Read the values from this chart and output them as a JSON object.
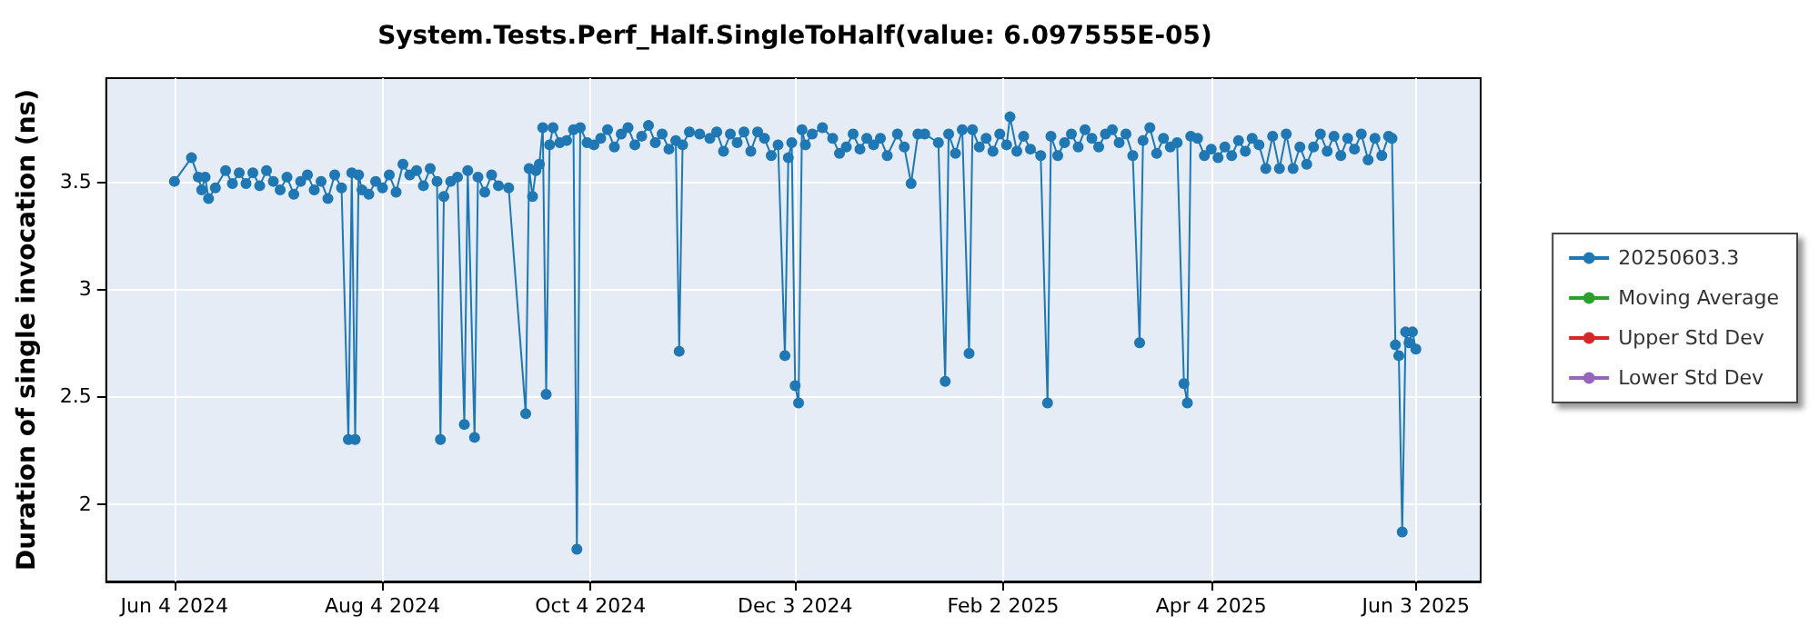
{
  "chart_data": {
    "type": "line",
    "title": "System.Tests.Perf_Half.SingleToHalf(value: 6.097555E-05)",
    "ylabel": "Duration of single invocation (ns)",
    "x": [
      "2024-06-04",
      "2024-06-09",
      "2024-06-11",
      "2024-06-12",
      "2024-06-13",
      "2024-06-14",
      "2024-06-16",
      "2024-06-19",
      "2024-06-21",
      "2024-06-23",
      "2024-06-25",
      "2024-06-27",
      "2024-06-29",
      "2024-07-01",
      "2024-07-03",
      "2024-07-05",
      "2024-07-07",
      "2024-07-09",
      "2024-07-11",
      "2024-07-13",
      "2024-07-15",
      "2024-07-17",
      "2024-07-19",
      "2024-07-21",
      "2024-07-23",
      "2024-07-25",
      "2024-07-26",
      "2024-07-27",
      "2024-07-28",
      "2024-07-29",
      "2024-07-31",
      "2024-08-02",
      "2024-08-04",
      "2024-08-06",
      "2024-08-08",
      "2024-08-10",
      "2024-08-12",
      "2024-08-14",
      "2024-08-16",
      "2024-08-18",
      "2024-08-20",
      "2024-08-21",
      "2024-08-22",
      "2024-08-24",
      "2024-08-26",
      "2024-08-28",
      "2024-08-29",
      "2024-08-31",
      "2024-09-01",
      "2024-09-03",
      "2024-09-05",
      "2024-09-07",
      "2024-09-10",
      "2024-09-15",
      "2024-09-16",
      "2024-09-17",
      "2024-09-18",
      "2024-09-19",
      "2024-09-20",
      "2024-09-21",
      "2024-09-22",
      "2024-09-23",
      "2024-09-25",
      "2024-09-27",
      "2024-09-29",
      "2024-09-30",
      "2024-10-01",
      "2024-10-03",
      "2024-10-05",
      "2024-10-07",
      "2024-10-09",
      "2024-10-11",
      "2024-10-13",
      "2024-10-15",
      "2024-10-17",
      "2024-10-19",
      "2024-10-21",
      "2024-10-23",
      "2024-10-25",
      "2024-10-27",
      "2024-10-29",
      "2024-10-30",
      "2024-10-31",
      "2024-11-02",
      "2024-11-05",
      "2024-11-08",
      "2024-11-10",
      "2024-11-12",
      "2024-11-14",
      "2024-11-16",
      "2024-11-18",
      "2024-11-20",
      "2024-11-22",
      "2024-11-24",
      "2024-11-26",
      "2024-11-28",
      "2024-11-30",
      "2024-12-01",
      "2024-12-02",
      "2024-12-03",
      "2024-12-04",
      "2024-12-05",
      "2024-12-06",
      "2024-12-08",
      "2024-12-11",
      "2024-12-14",
      "2024-12-16",
      "2024-12-18",
      "2024-12-20",
      "2024-12-22",
      "2024-12-24",
      "2024-12-26",
      "2024-12-28",
      "2024-12-30",
      "2025-01-02",
      "2025-01-04",
      "2025-01-06",
      "2025-01-08",
      "2025-01-10",
      "2025-01-14",
      "2025-01-16",
      "2025-01-17",
      "2025-01-19",
      "2025-01-21",
      "2025-01-23",
      "2025-01-24",
      "2025-01-26",
      "2025-01-28",
      "2025-01-30",
      "2025-02-01",
      "2025-02-03",
      "2025-02-04",
      "2025-02-06",
      "2025-02-08",
      "2025-02-10",
      "2025-02-13",
      "2025-02-15",
      "2025-02-16",
      "2025-02-18",
      "2025-02-20",
      "2025-02-22",
      "2025-02-24",
      "2025-02-26",
      "2025-02-28",
      "2025-03-02",
      "2025-03-04",
      "2025-03-06",
      "2025-03-08",
      "2025-03-10",
      "2025-03-12",
      "2025-03-14",
      "2025-03-15",
      "2025-03-17",
      "2025-03-19",
      "2025-03-21",
      "2025-03-23",
      "2025-03-25",
      "2025-03-27",
      "2025-03-28",
      "2025-03-29",
      "2025-03-31",
      "2025-04-02",
      "2025-04-04",
      "2025-04-06",
      "2025-04-08",
      "2025-04-10",
      "2025-04-12",
      "2025-04-14",
      "2025-04-16",
      "2025-04-18",
      "2025-04-20",
      "2025-04-22",
      "2025-04-24",
      "2025-04-26",
      "2025-04-28",
      "2025-04-30",
      "2025-05-02",
      "2025-05-04",
      "2025-05-06",
      "2025-05-08",
      "2025-05-10",
      "2025-05-12",
      "2025-05-14",
      "2025-05-16",
      "2025-05-18",
      "2025-05-20",
      "2025-05-22",
      "2025-05-24",
      "2025-05-26",
      "2025-05-27",
      "2025-05-28",
      "2025-05-29",
      "2025-05-30",
      "2025-05-31",
      "2025-06-01",
      "2025-06-02",
      "2025-06-03"
    ],
    "series": [
      {
        "name": "20250603.3",
        "color": "#1f77b4",
        "values": [
          3.5,
          3.61,
          3.52,
          3.46,
          3.52,
          3.42,
          3.47,
          3.55,
          3.49,
          3.54,
          3.49,
          3.54,
          3.48,
          3.55,
          3.5,
          3.46,
          3.52,
          3.44,
          3.5,
          3.53,
          3.46,
          3.5,
          3.42,
          3.53,
          3.47,
          2.3,
          3.54,
          2.3,
          3.53,
          3.46,
          3.44,
          3.5,
          3.47,
          3.53,
          3.45,
          3.58,
          3.53,
          3.55,
          3.48,
          3.56,
          3.5,
          2.3,
          3.43,
          3.5,
          3.52,
          2.37,
          3.55,
          2.31,
          3.52,
          3.45,
          3.53,
          3.48,
          3.47,
          2.42,
          3.56,
          3.43,
          3.55,
          3.58,
          3.75,
          2.51,
          3.67,
          3.75,
          3.68,
          3.69,
          3.74,
          1.79,
          3.75,
          3.68,
          3.67,
          3.7,
          3.74,
          3.66,
          3.72,
          3.75,
          3.67,
          3.71,
          3.76,
          3.68,
          3.72,
          3.65,
          3.69,
          2.71,
          3.67,
          3.73,
          3.72,
          3.7,
          3.73,
          3.64,
          3.72,
          3.68,
          3.73,
          3.64,
          3.73,
          3.7,
          3.62,
          3.67,
          2.69,
          3.61,
          3.68,
          2.55,
          2.47,
          3.74,
          3.67,
          3.72,
          3.75,
          3.7,
          3.63,
          3.66,
          3.72,
          3.65,
          3.7,
          3.67,
          3.7,
          3.62,
          3.72,
          3.66,
          3.49,
          3.72,
          3.72,
          3.68,
          2.57,
          3.72,
          3.63,
          3.74,
          2.7,
          3.74,
          3.66,
          3.7,
          3.64,
          3.72,
          3.67,
          3.8,
          3.64,
          3.71,
          3.65,
          3.62,
          2.47,
          3.71,
          3.62,
          3.68,
          3.72,
          3.66,
          3.74,
          3.7,
          3.66,
          3.72,
          3.74,
          3.68,
          3.72,
          3.62,
          2.75,
          3.69,
          3.75,
          3.63,
          3.7,
          3.66,
          3.68,
          2.56,
          2.47,
          3.71,
          3.7,
          3.62,
          3.65,
          3.61,
          3.66,
          3.62,
          3.69,
          3.64,
          3.7,
          3.67,
          3.56,
          3.71,
          3.56,
          3.72,
          3.56,
          3.66,
          3.58,
          3.66,
          3.72,
          3.64,
          3.71,
          3.62,
          3.7,
          3.65,
          3.72,
          3.6,
          3.7,
          3.62,
          3.71,
          3.7,
          2.74,
          2.69,
          1.87,
          2.8,
          2.75,
          2.8,
          2.72
        ]
      },
      {
        "name": "Moving Average",
        "color": "#2ca02c",
        "values": [
          null,
          null,
          null,
          null,
          null,
          null,
          null,
          null,
          null,
          null,
          null,
          null,
          null,
          null,
          null,
          null,
          null,
          null,
          null,
          null,
          null,
          null,
          null,
          null,
          null,
          null,
          null,
          null,
          null,
          null,
          null,
          null,
          null,
          null,
          null,
          null,
          null,
          null,
          null,
          null,
          null,
          null,
          null,
          null,
          null,
          null,
          null,
          null,
          null,
          null,
          null,
          null,
          null,
          null,
          null,
          null,
          null,
          null,
          null,
          null,
          null,
          null,
          null,
          null,
          null,
          null,
          null,
          null,
          null,
          null,
          null,
          null,
          null,
          null,
          null,
          null,
          null,
          null,
          null,
          null,
          null,
          null,
          null,
          null,
          null,
          null,
          null,
          null,
          null,
          null,
          null,
          null,
          null,
          null,
          null,
          null,
          null,
          null,
          null,
          null,
          null,
          null,
          null,
          null,
          null,
          null,
          null,
          null,
          null,
          null,
          null,
          null,
          null,
          null,
          null,
          null,
          null,
          null,
          null,
          null,
          null,
          null,
          null,
          null,
          null,
          null,
          null,
          null,
          null,
          null,
          null,
          null,
          null,
          null,
          null,
          null,
          null,
          null,
          null,
          null,
          null,
          null,
          null,
          null,
          null,
          null,
          null,
          null,
          null,
          null,
          null,
          null,
          null,
          null,
          null,
          null,
          null,
          null,
          null,
          null,
          null,
          null,
          null,
          null,
          null,
          null,
          null,
          null,
          null,
          null,
          null,
          null,
          null,
          null,
          null,
          null,
          null,
          null,
          null,
          null,
          null,
          null,
          null,
          null,
          null,
          null,
          null,
          null,
          null,
          null,
          null,
          null,
          null,
          null,
          null,
          null,
          null
        ]
      },
      {
        "name": "Upper Std Dev",
        "color": "#d62728",
        "values": [
          null,
          null,
          null,
          null,
          null,
          null,
          null,
          null,
          null,
          null,
          null,
          null,
          null,
          null,
          null,
          null,
          null,
          null,
          null,
          null,
          null,
          null,
          null,
          null,
          null,
          null,
          null,
          null,
          null,
          null,
          null,
          null,
          null,
          null,
          null,
          null,
          null,
          null,
          null,
          null,
          null,
          null,
          null,
          null,
          null,
          null,
          null,
          null,
          null,
          null,
          null,
          null,
          null,
          null,
          null,
          null,
          null,
          null,
          null,
          null,
          null,
          null,
          null,
          null,
          null,
          null,
          null,
          null,
          null,
          null,
          null,
          null,
          null,
          null,
          null,
          null,
          null,
          null,
          null,
          null,
          null,
          null,
          null,
          null,
          null,
          null,
          null,
          null,
          null,
          null,
          null,
          null,
          null,
          null,
          null,
          null,
          null,
          null,
          null,
          null,
          null,
          null,
          null,
          null,
          null,
          null,
          null,
          null,
          null,
          null,
          null,
          null,
          null,
          null,
          null,
          null,
          null,
          null,
          null,
          null,
          null,
          null,
          null,
          null,
          null,
          null,
          null,
          null,
          null,
          null,
          null,
          null,
          null,
          null,
          null,
          null,
          null,
          null,
          null,
          null,
          null,
          null,
          null,
          null,
          null,
          null,
          null,
          null,
          null,
          null,
          null,
          null,
          null,
          null,
          null,
          null,
          null,
          null,
          null,
          null,
          null,
          null,
          null,
          null,
          null,
          null,
          null,
          null,
          null,
          null,
          null,
          null,
          null,
          null,
          null,
          null,
          null,
          null,
          null,
          null,
          null,
          null,
          null,
          null,
          null,
          null,
          null,
          null,
          null,
          null,
          null,
          null,
          null,
          null,
          null,
          null,
          null
        ]
      },
      {
        "name": "Lower Std Dev",
        "color": "#9467bd",
        "values": [
          null,
          null,
          null,
          null,
          null,
          null,
          null,
          null,
          null,
          null,
          null,
          null,
          null,
          null,
          null,
          null,
          null,
          null,
          null,
          null,
          null,
          null,
          null,
          null,
          null,
          null,
          null,
          null,
          null,
          null,
          null,
          null,
          null,
          null,
          null,
          null,
          null,
          null,
          null,
          null,
          null,
          null,
          null,
          null,
          null,
          null,
          null,
          null,
          null,
          null,
          null,
          null,
          null,
          null,
          null,
          null,
          null,
          null,
          null,
          null,
          null,
          null,
          null,
          null,
          null,
          null,
          null,
          null,
          null,
          null,
          null,
          null,
          null,
          null,
          null,
          null,
          null,
          null,
          null,
          null,
          null,
          null,
          null,
          null,
          null,
          null,
          null,
          null,
          null,
          null,
          null,
          null,
          null,
          null,
          null,
          null,
          null,
          null,
          null,
          null,
          null,
          null,
          null,
          null,
          null,
          null,
          null,
          null,
          null,
          null,
          null,
          null,
          null,
          null,
          null,
          null,
          null,
          null,
          null,
          null,
          null,
          null,
          null,
          null,
          null,
          null,
          null,
          null,
          null,
          null,
          null,
          null,
          null,
          null,
          null,
          null,
          null,
          null,
          null,
          null,
          null,
          null,
          null,
          null,
          null,
          null,
          null,
          null,
          null,
          null,
          null,
          null,
          null,
          null,
          null,
          null,
          null,
          null,
          null,
          null,
          null,
          null,
          null,
          null,
          null,
          null,
          null,
          null,
          null,
          null,
          null,
          null,
          null,
          null,
          null,
          null,
          null,
          null,
          null,
          null,
          null,
          null,
          null,
          null,
          null,
          null,
          null,
          null,
          null,
          null,
          null,
          null,
          null,
          null,
          null,
          null,
          null
        ]
      }
    ],
    "xlim": [
      "2024-05-15",
      "2025-06-22"
    ],
    "xticks": [
      {
        "value": "2024-06-04",
        "label": "Jun 4 2024"
      },
      {
        "value": "2024-08-04",
        "label": "Aug 4 2024"
      },
      {
        "value": "2024-10-04",
        "label": "Oct 4 2024"
      },
      {
        "value": "2024-12-03",
        "label": "Dec 3 2024"
      },
      {
        "value": "2025-02-02",
        "label": "Feb 2 2025"
      },
      {
        "value": "2025-04-04",
        "label": "Apr 4 2025"
      },
      {
        "value": "2025-06-03",
        "label": "Jun 3 2025"
      }
    ],
    "ylim": [
      1.64,
      3.98
    ],
    "yticks": [
      2,
      2.5,
      3,
      3.5
    ],
    "grid": true,
    "legend": "right",
    "marker": "circle",
    "line_style": "solid"
  }
}
